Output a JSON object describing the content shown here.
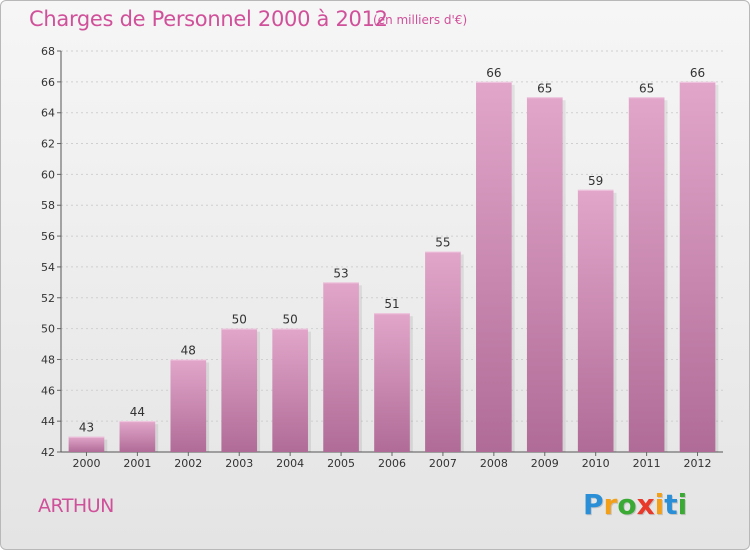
{
  "title": "Charges de Personnel 2000 à 2012",
  "subtitle": "(en milliers d'€)",
  "commune": "ARTHUN",
  "logo": {
    "text": "Proxiti",
    "letters": [
      {
        "ch": "P",
        "color": "#2a8fd6"
      },
      {
        "ch": "r",
        "color": "#f2a01a"
      },
      {
        "ch": "o",
        "color": "#3aaa35"
      },
      {
        "ch": "x",
        "color": "#e8392b"
      },
      {
        "ch": "i",
        "color": "#f2a01a"
      },
      {
        "ch": "t",
        "color": "#2a8fd6"
      },
      {
        "ch": "i",
        "color": "#3aaa35"
      }
    ]
  },
  "colors": {
    "accent": "#d0509a",
    "bar_top": "#e2a6ca",
    "bar_bottom": "#b06c97",
    "grid": "#cfcfcf"
  },
  "chart_data": {
    "type": "bar",
    "categories": [
      "2000",
      "2001",
      "2002",
      "2003",
      "2004",
      "2005",
      "2006",
      "2007",
      "2008",
      "2009",
      "2010",
      "2011",
      "2012"
    ],
    "values": [
      43,
      44,
      48,
      50,
      50,
      53,
      51,
      55,
      66,
      65,
      59,
      65,
      66
    ],
    "ylim": [
      42,
      68
    ],
    "yticks": [
      42,
      44,
      46,
      48,
      50,
      52,
      54,
      56,
      58,
      60,
      62,
      64,
      66,
      68
    ],
    "grid": true
  }
}
